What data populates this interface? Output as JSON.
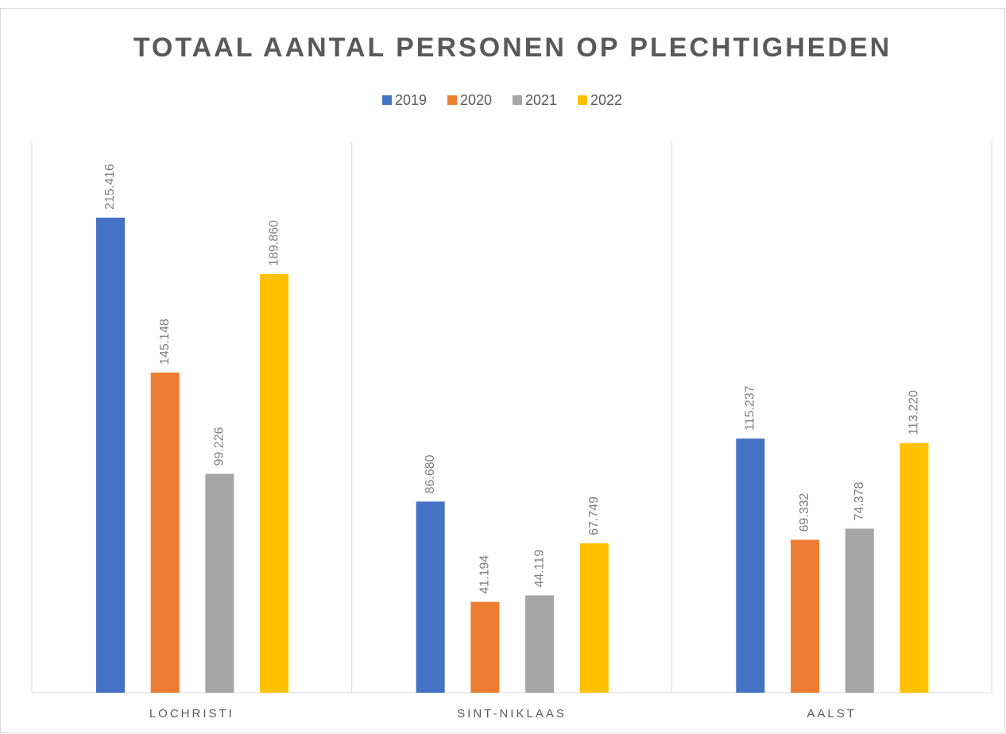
{
  "chart_data": {
    "type": "bar",
    "title": "TOTAAL AANTAL PERSONEN OP PLECHTIGHEDEN",
    "categories": [
      "LOCHRISTI",
      "SINT-NIKLAAS",
      "AALST"
    ],
    "series": [
      {
        "name": "2019",
        "color": "#4472c4",
        "values": [
          215416,
          86680,
          115237
        ],
        "value_labels": [
          "215.416",
          "86.680",
          "115.237"
        ]
      },
      {
        "name": "2020",
        "color": "#ed7d31",
        "values": [
          145148,
          41194,
          69332
        ],
        "value_labels": [
          "145.148",
          "41.194",
          "69.332"
        ]
      },
      {
        "name": "2021",
        "color": "#a5a5a5",
        "values": [
          99226,
          44119,
          74378
        ],
        "value_labels": [
          "99.226",
          "44.119",
          "74.378"
        ]
      },
      {
        "name": "2022",
        "color": "#ffc000",
        "values": [
          189860,
          67749,
          113220
        ],
        "value_labels": [
          "189.860",
          "67.749",
          "113.220"
        ]
      }
    ],
    "ylim": [
      0,
      250000
    ],
    "legend": "top"
  }
}
